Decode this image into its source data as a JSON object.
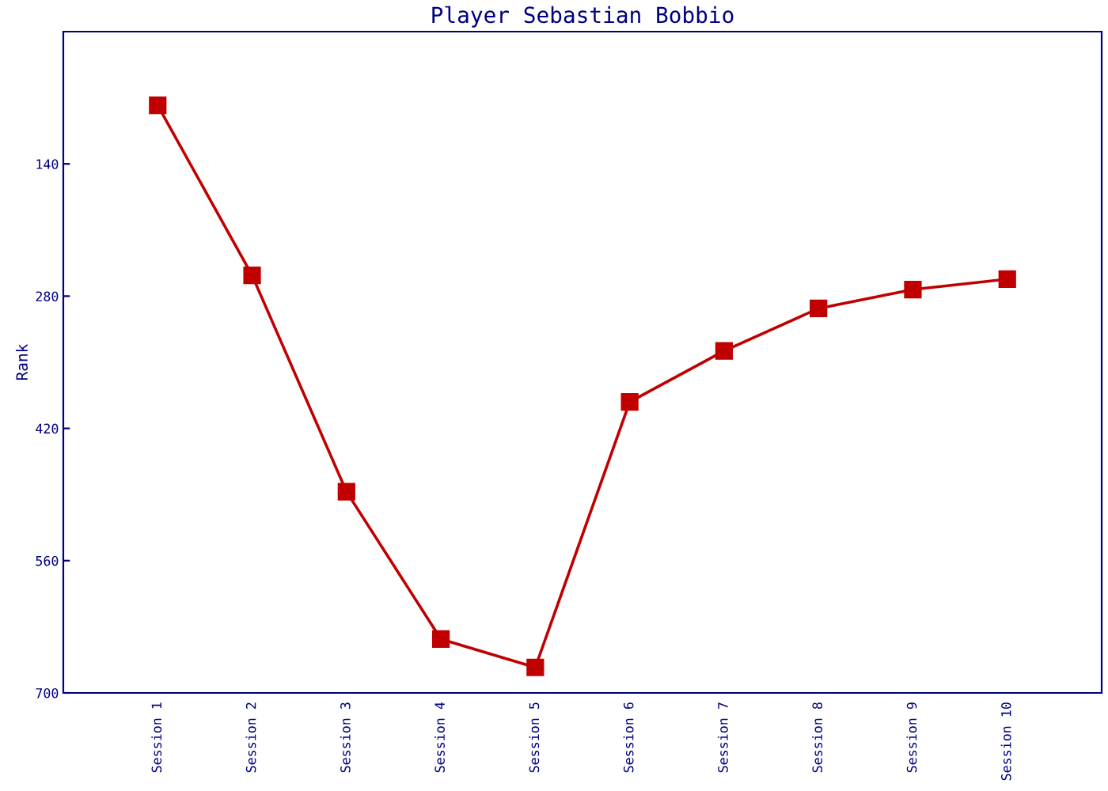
{
  "chart_data": {
    "type": "line",
    "title": "Player Sebastian Bobbio",
    "ylabel": "Rank",
    "categories": [
      "Session 1",
      "Session 2",
      "Session 3",
      "Session 4",
      "Session 5",
      "Session 6",
      "Session 7",
      "Session 8",
      "Session 9",
      "Session 10"
    ],
    "series": [
      {
        "color": "#c00000",
        "values": [
          78,
          258,
          487,
          643,
          673,
          392,
          338,
          293,
          273,
          262
        ]
      }
    ],
    "ylim": [
      700,
      0
    ],
    "yticks": [
      140,
      280,
      420,
      560,
      700
    ],
    "grid": false,
    "legend": false,
    "marker": "square",
    "line_style": "solid"
  }
}
